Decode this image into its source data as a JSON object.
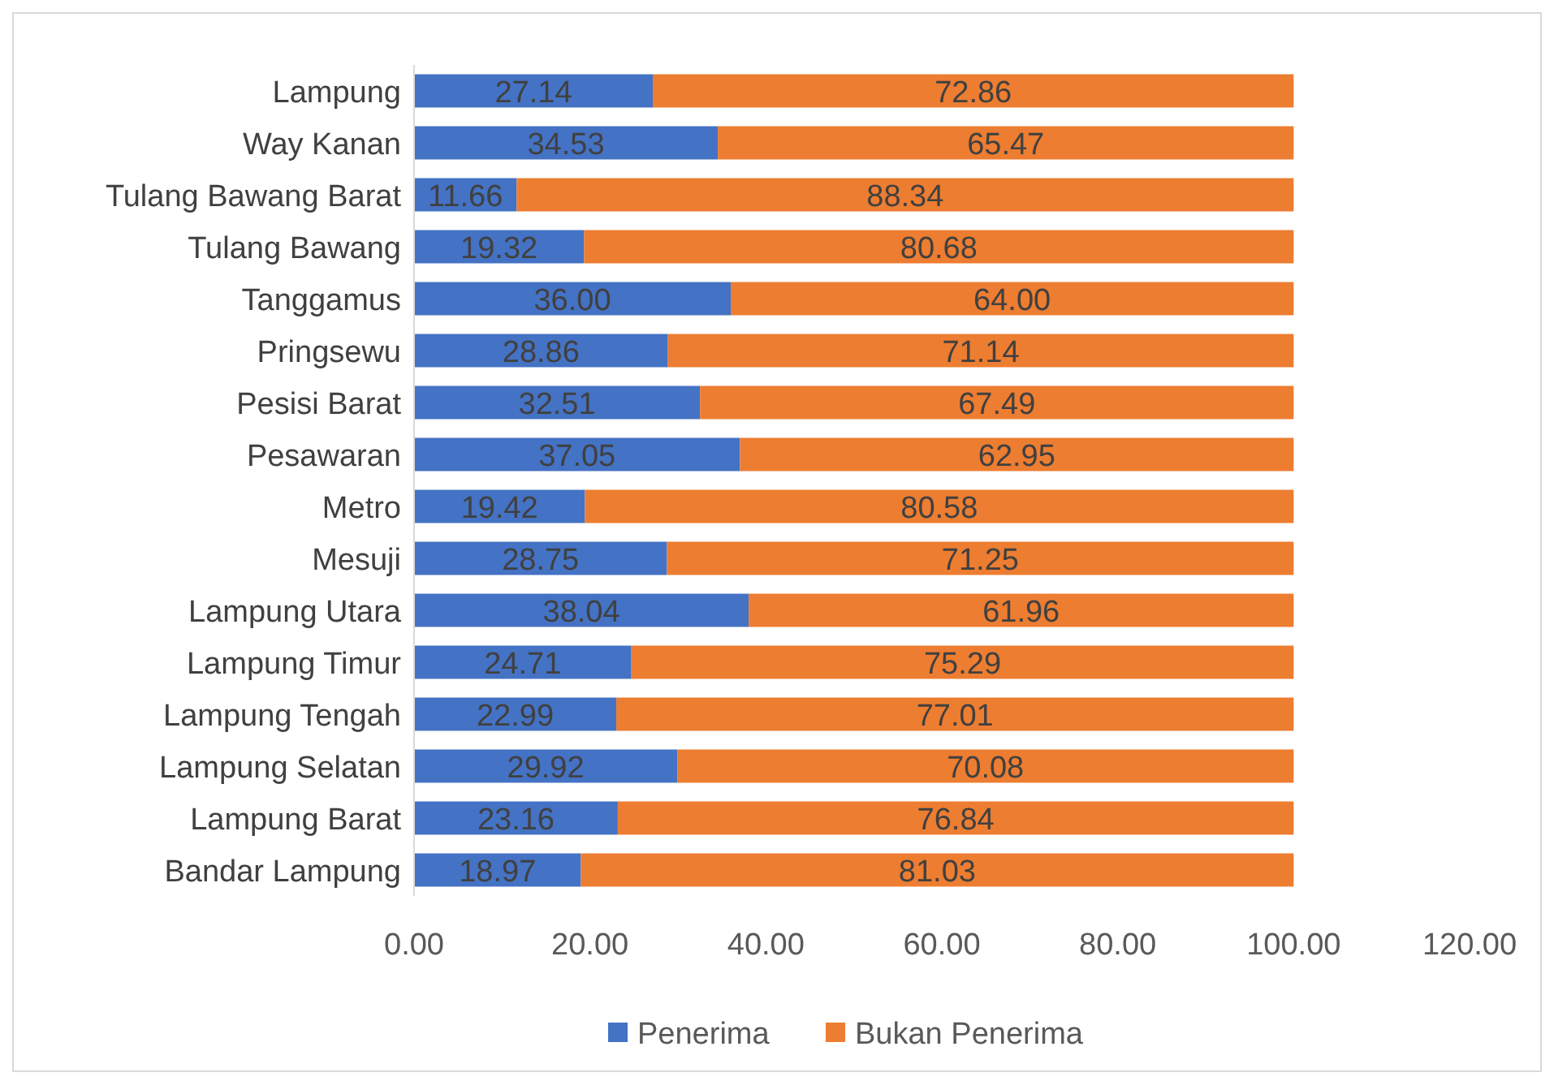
{
  "chart_data": {
    "type": "bar",
    "orientation": "horizontal",
    "stacked": true,
    "grid": false,
    "legend": "bottom",
    "categories": [
      "Lampung",
      "Way Kanan",
      "Tulang Bawang Barat",
      "Tulang Bawang",
      "Tanggamus",
      "Pringsewu",
      "Pesisi Barat",
      "Pesawaran",
      "Metro",
      "Mesuji",
      "Lampung Utara",
      "Lampung Timur",
      "Lampung Tengah",
      "Lampung Selatan",
      "Lampung Barat",
      "Bandar Lampung"
    ],
    "series": [
      {
        "name": "Penerima",
        "color": "#4472c4",
        "values": [
          27.14,
          34.53,
          11.66,
          19.32,
          36.0,
          28.86,
          32.51,
          37.05,
          19.42,
          28.75,
          38.04,
          24.71,
          22.99,
          29.92,
          23.16,
          18.97
        ],
        "value_labels": [
          "27.14",
          "34.53",
          "11.66",
          "19.32",
          "36.00",
          "28.86",
          "32.51",
          "37.05",
          "19.42",
          "28.75",
          "38.04",
          "24.71",
          "22.99",
          "29.92",
          "23.16",
          "18.97"
        ]
      },
      {
        "name": "Bukan Penerima",
        "color": "#ed7d31",
        "values": [
          72.86,
          65.47,
          88.34,
          80.68,
          64.0,
          71.14,
          67.49,
          62.95,
          80.58,
          71.25,
          61.96,
          75.29,
          77.01,
          70.08,
          76.84,
          81.03
        ],
        "value_labels": [
          "72.86",
          "65.47",
          "88.34",
          "80.68",
          "64.00",
          "71.14",
          "67.49",
          "62.95",
          "80.58",
          "71.25",
          "61.96",
          "75.29",
          "77.01",
          "70.08",
          "76.84",
          "81.03"
        ]
      }
    ],
    "xlim": [
      0,
      120
    ],
    "xticks": [
      {
        "value": 0,
        "label": "0.00"
      },
      {
        "value": 20,
        "label": "20.00"
      },
      {
        "value": 40,
        "label": "40.00"
      },
      {
        "value": 60,
        "label": "60.00"
      },
      {
        "value": 80,
        "label": "80.00"
      },
      {
        "value": 100,
        "label": "100.00"
      },
      {
        "value": 120,
        "label": "120.00"
      }
    ]
  }
}
